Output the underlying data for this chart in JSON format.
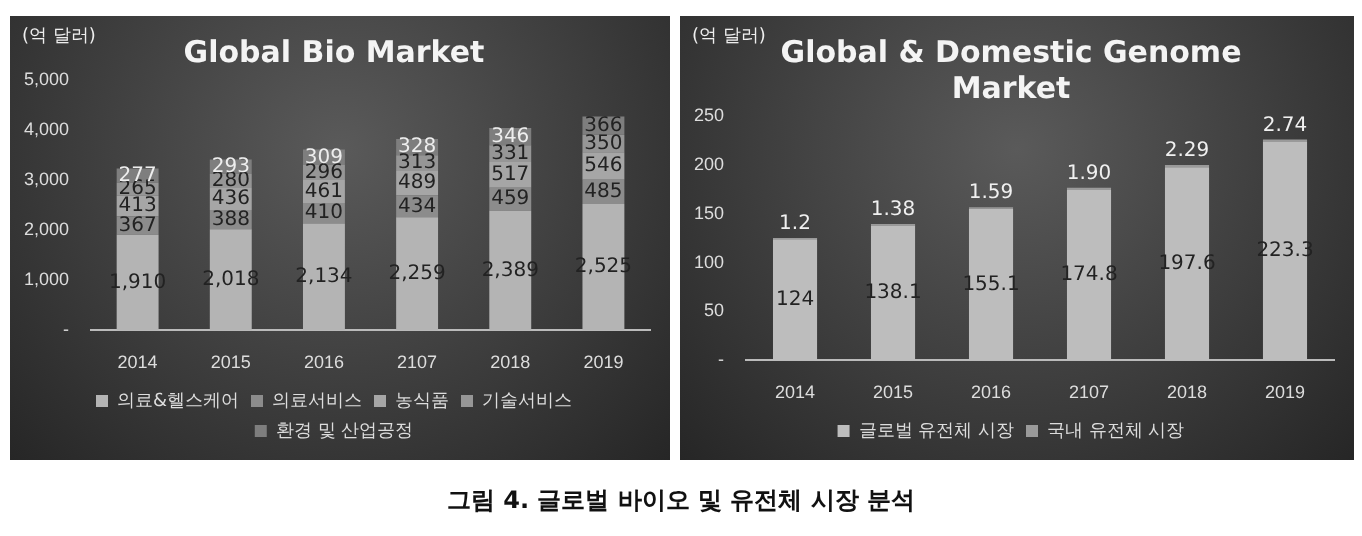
{
  "chart_data": [
    {
      "type": "bar",
      "title": "Global Bio Market",
      "ylabel": "(억 달러)",
      "stacked": true,
      "legend": "bottom",
      "grid": false,
      "categories": [
        "2014",
        "2015",
        "2016",
        "2107",
        "2018",
        "2019"
      ],
      "ylim": [
        0,
        5000
      ],
      "yticks": [
        {
          "value": 0,
          "label": "-"
        },
        {
          "value": 1000,
          "label": "1,000"
        },
        {
          "value": 2000,
          "label": "2,000"
        },
        {
          "value": 3000,
          "label": "3,000"
        },
        {
          "value": 4000,
          "label": "4,000"
        },
        {
          "value": 5000,
          "label": "5,000"
        }
      ],
      "series": [
        {
          "name": "의료&헬스케어",
          "color": "#b4b4b4",
          "values": [
            1910,
            2018,
            2134,
            2259,
            2389,
            2525
          ],
          "value_labels": [
            "1,910",
            "2,018",
            "2,134",
            "2,259",
            "2,389",
            "2,525"
          ]
        },
        {
          "name": "의료서비스",
          "color": "#8c8c8c",
          "values": [
            367,
            388,
            410,
            434,
            459,
            485
          ],
          "value_labels": [
            "367",
            "388",
            "410",
            "434",
            "459",
            "485"
          ]
        },
        {
          "name": "농식품",
          "color": "#a6a6a6",
          "values": [
            413,
            436,
            461,
            489,
            517,
            546
          ],
          "value_labels": [
            "413",
            "436",
            "461",
            "489",
            "517",
            "546"
          ]
        },
        {
          "name": "기술서비스",
          "color": "#969696",
          "values": [
            265,
            280,
            296,
            313,
            331,
            350
          ],
          "value_labels": [
            "265",
            "280",
            "296",
            "313",
            "331",
            "350"
          ]
        },
        {
          "name": "환경 및 산업공정",
          "color": "#7e7e7e",
          "values": [
            277,
            293,
            309,
            328,
            346,
            366
          ],
          "value_labels": [
            "277",
            "293",
            "309",
            "328",
            "346",
            "366"
          ]
        }
      ],
      "annotations": [
        "그림 4. 글로벌 바이오 및 유전체 시장 분석"
      ]
    },
    {
      "type": "bar",
      "title": "Global & Domestic Genome Market",
      "ylabel": "(억 달러)",
      "stacked": true,
      "legend": "bottom",
      "grid": false,
      "categories": [
        "2014",
        "2015",
        "2016",
        "2107",
        "2018",
        "2019"
      ],
      "ylim": [
        0,
        250
      ],
      "yticks": [
        {
          "value": 0,
          "label": "-"
        },
        50,
        100,
        150,
        200,
        250
      ],
      "series": [
        {
          "name": "글로벌 유전체 시장",
          "color": "#bdbdbd",
          "values": [
            124,
            138.1,
            155.1,
            174.8,
            197.6,
            223.3
          ],
          "value_labels": [
            "124",
            "138.1",
            "155.1",
            "174.8",
            "197.6",
            "223.3"
          ]
        },
        {
          "name": "국내 유전체 시장",
          "color": "#9a9a9a",
          "values": [
            1.2,
            1.38,
            1.59,
            1.9,
            2.29,
            2.74
          ],
          "value_labels": [
            "1.2",
            "1.38",
            "1.59",
            "1.90",
            "2.29",
            "2.74"
          ]
        }
      ]
    }
  ]
}
